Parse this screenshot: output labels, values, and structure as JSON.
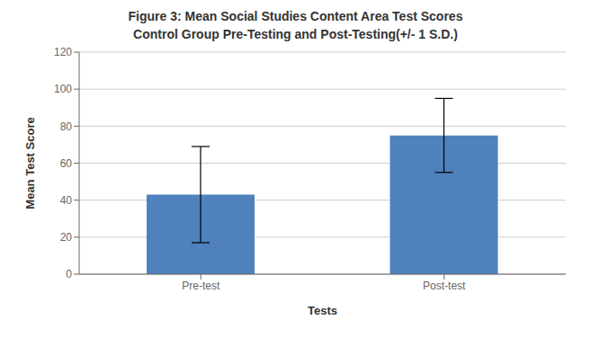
{
  "chart_data": {
    "type": "bar",
    "title": "Figure 3: Mean Social Studies Content Area Test Scores",
    "subtitle": "Control Group Pre-Testing and Post-Testing(+/- 1 S.D.)",
    "categories": [
      "Pre-test",
      "Post-test"
    ],
    "values": [
      43,
      75
    ],
    "errors": [
      26,
      20
    ],
    "color": "#4F81BD",
    "xlabel": "Tests",
    "ylabel": "Mean Test Score",
    "ylim": [
      0,
      120
    ],
    "yticks": [
      0,
      20,
      40,
      60,
      80,
      100,
      120
    ],
    "grid": true
  }
}
